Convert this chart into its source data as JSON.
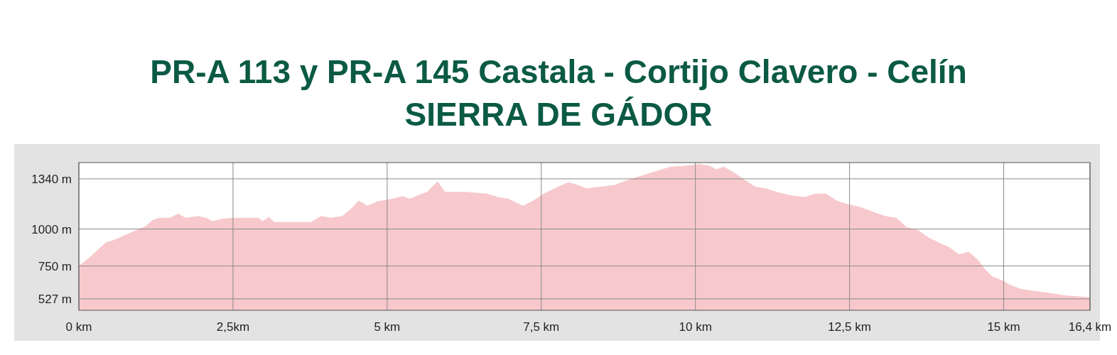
{
  "chart_data": {
    "type": "area",
    "title": "PR-A 113 y PR-A 145 Castala - Cortijo Clavero - Celín",
    "subtitle": "SIERRA DE GÁDOR",
    "x": [
      0,
      0.16,
      0.33,
      0.45,
      0.56,
      0.73,
      0.9,
      1.08,
      1.19,
      1.3,
      1.48,
      1.61,
      1.73,
      1.93,
      2.07,
      2.16,
      2.33,
      2.5,
      2.91,
      2.98,
      3.08,
      3.17,
      3.53,
      3.76,
      3.93,
      4.08,
      4.27,
      4.41,
      4.54,
      4.68,
      4.85,
      5.08,
      5.25,
      5.37,
      5.5,
      5.65,
      5.73,
      5.82,
      5.94,
      6.28,
      6.62,
      6.8,
      6.97,
      7.2,
      7.37,
      7.54,
      7.77,
      7.94,
      8.09,
      8.23,
      8.46,
      8.69,
      8.91,
      9.14,
      9.37,
      9.6,
      9.83,
      10.06,
      10.23,
      10.34,
      10.46,
      10.63,
      10.8,
      10.97,
      11.14,
      11.32,
      11.54,
      11.77,
      11.94,
      12.12,
      12.29,
      12.46,
      12.69,
      12.92,
      13.08,
      13.26,
      13.43,
      13.6,
      13.78,
      13.95,
      14.12,
      14.27,
      14.43,
      14.58,
      14.7,
      14.81,
      14.99,
      15.1,
      15.27,
      15.5,
      15.78,
      16.01,
      16.4
    ],
    "series": [
      {
        "color": "#f7c9cc",
        "values": [
          750,
          803,
          868,
          912,
          925,
          956,
          987,
          1018,
          1059,
          1076,
          1076,
          1105,
          1076,
          1088,
          1076,
          1053,
          1070,
          1076,
          1076,
          1053,
          1082,
          1047,
          1047,
          1047,
          1088,
          1076,
          1088,
          1135,
          1193,
          1158,
          1188,
          1205,
          1223,
          1205,
          1229,
          1252,
          1287,
          1322,
          1252,
          1252,
          1240,
          1217,
          1205,
          1158,
          1193,
          1240,
          1287,
          1316,
          1299,
          1276,
          1287,
          1299,
          1334,
          1363,
          1393,
          1422,
          1428,
          1440,
          1428,
          1404,
          1422,
          1381,
          1334,
          1287,
          1276,
          1252,
          1229,
          1217,
          1240,
          1240,
          1193,
          1170,
          1147,
          1111,
          1088,
          1076,
          1012,
          996,
          943,
          908,
          877,
          829,
          846,
          794,
          727,
          681,
          650,
          623,
          596,
          581,
          565,
          550,
          538
        ]
      }
    ],
    "xlim": [
      0,
      16.4
    ],
    "xticks": [
      {
        "value": 0,
        "label": "0 km"
      },
      {
        "value": 2.5,
        "label": "2,5km"
      },
      {
        "value": 5,
        "label": "5 km"
      },
      {
        "value": 7.5,
        "label": "7,5 km"
      },
      {
        "value": 10,
        "label": "10 km"
      },
      {
        "value": 12.5,
        "label": "12,5 km"
      },
      {
        "value": 15,
        "label": "15 km"
      },
      {
        "value": 16.4,
        "label": "16,4 km"
      }
    ],
    "ylim": [
      450,
      1450
    ],
    "yticks": [
      {
        "value": 527,
        "label": "527 m"
      },
      {
        "value": 750,
        "label": "750 m"
      },
      {
        "value": 1000,
        "label": "1000 m"
      },
      {
        "value": 1340,
        "label": "1340 m"
      }
    ],
    "grid": true
  }
}
